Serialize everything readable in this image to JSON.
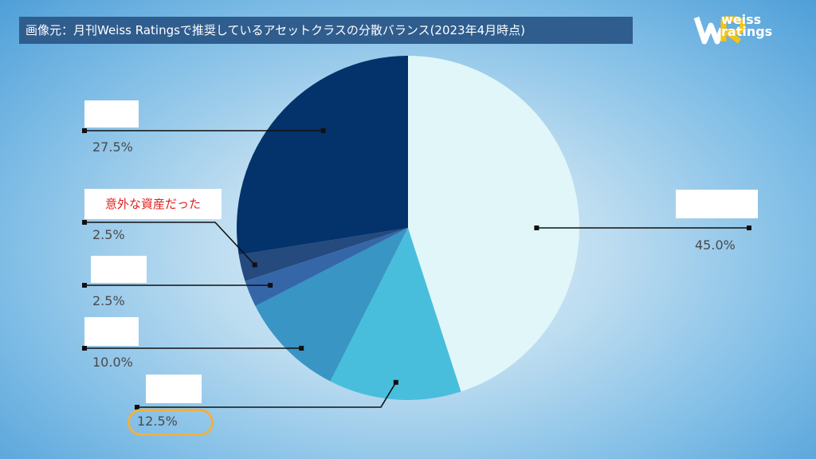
{
  "caption": "画像元：月刊Weiss Ratingsで推奨しているアセットクラスの分散バランス(2023年4月時点)",
  "logo": {
    "line1": "weiss",
    "line2": "ratings"
  },
  "annotation": "意外な資産だった",
  "colors": {
    "slice_45": "#e0f6f9",
    "slice_12_5": "#49bedc",
    "slice_10": "#3895c4",
    "slice_2_5_a": "#3567a8",
    "slice_2_5_b": "#244a7e",
    "slice_27_5": "#04336b",
    "highlight": "#f0b040",
    "annotation_text": "#e01e1e"
  },
  "chart_data": {
    "type": "pie",
    "slices": [
      {
        "label": "",
        "value": 45.0,
        "display": "45.0%"
      },
      {
        "label": "",
        "value": 12.5,
        "display": "12.5%"
      },
      {
        "label": "",
        "value": 10.0,
        "display": "10.0%"
      },
      {
        "label": "",
        "value": 2.5,
        "display": "2.5%"
      },
      {
        "label": "",
        "value": 2.5,
        "display": "2.5%"
      },
      {
        "label": "",
        "value": 27.5,
        "display": "27.5%"
      }
    ],
    "start": "12 o'clock",
    "direction": "clockwise",
    "highlighted_slice": 1,
    "annotated_slice": 4
  }
}
